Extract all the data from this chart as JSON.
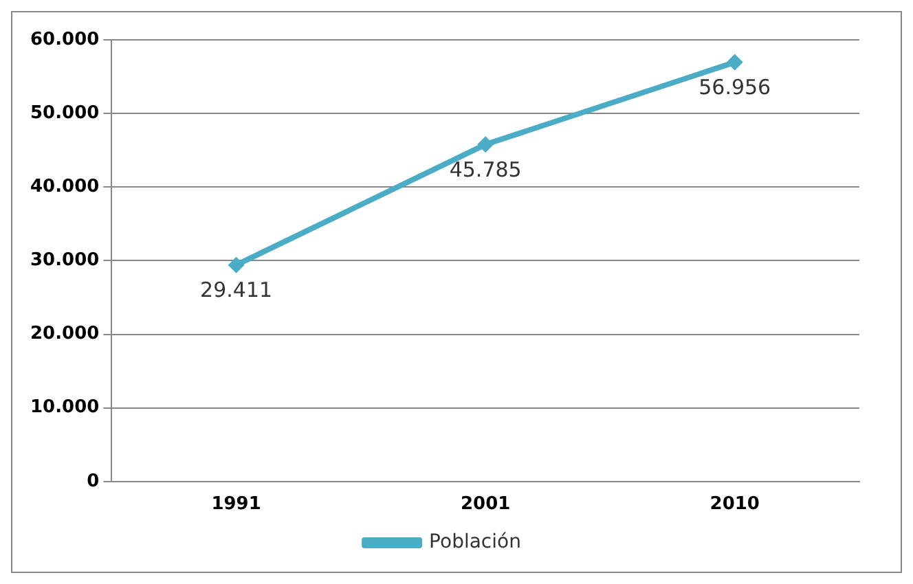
{
  "chart_data": {
    "type": "line",
    "categories": [
      "1991",
      "2001",
      "2010"
    ],
    "series": [
      {
        "name": "Población",
        "color": "#4bacc6",
        "values": [
          29411,
          45785,
          56956
        ],
        "value_labels": [
          "29.411",
          "45.785",
          "56.956"
        ]
      }
    ],
    "ylim": [
      0,
      60000
    ],
    "yticks": [
      0,
      {
        "value": 10000,
        "label": "10.000"
      },
      {
        "value": 20000,
        "label": "20.000"
      },
      {
        "value": 30000,
        "label": "30.000"
      },
      {
        "value": 40000,
        "label": "40.000"
      },
      {
        "value": 50000,
        "label": "50.000"
      },
      {
        "value": 60000,
        "label": "60.000"
      }
    ],
    "grid": "y",
    "legend": "bottom",
    "marker": "diamond",
    "line_style": "solid"
  }
}
